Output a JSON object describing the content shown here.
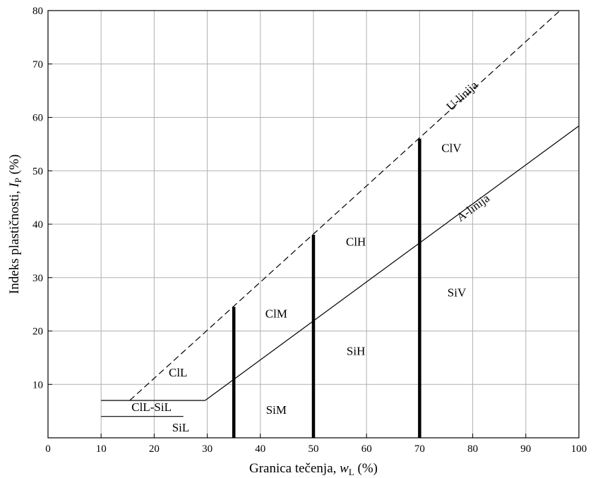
{
  "chart_data": {
    "type": "line",
    "xlabel": {
      "text": "Granica tečenja, ",
      "symbol": "w",
      "subscript": "L",
      "unit": " (%)"
    },
    "ylabel": {
      "text": "Indeks plastičnosti, ",
      "symbol": "I",
      "subscript": "P",
      "unit": " (%)"
    },
    "xlim": [
      0,
      100
    ],
    "ylim": [
      0,
      80
    ],
    "xticks": [
      0,
      10,
      20,
      30,
      40,
      50,
      60,
      70,
      80,
      90,
      100
    ],
    "yticks": [
      10,
      20,
      30,
      40,
      50,
      60,
      70,
      80
    ],
    "grid": true,
    "lines": [
      {
        "name": "U-linija",
        "style": "dashed",
        "points": [
          [
            15.4,
            7
          ],
          [
            100,
            83.2
          ]
        ]
      },
      {
        "name": "A-linija",
        "style": "solid",
        "points": [
          [
            29.6,
            7
          ],
          [
            100,
            58.4
          ]
        ]
      }
    ],
    "boundary_lines": [
      {
        "points": [
          [
            10,
            7
          ],
          [
            29.6,
            7
          ]
        ]
      },
      {
        "points": [
          [
            10,
            4
          ],
          [
            25.5,
            4
          ]
        ]
      }
    ],
    "divider_lines": [
      {
        "x": 35,
        "y_top": 24.5
      },
      {
        "x": 50,
        "y_top": 38
      },
      {
        "x": 70,
        "y_top": 56
      }
    ],
    "zones": [
      {
        "label": "ClL",
        "x": 24.5,
        "y": 11.5
      },
      {
        "label": "ClL-SiL",
        "x": 19.5,
        "y": 5.0
      },
      {
        "label": "SiL",
        "x": 25,
        "y": 1.2
      },
      {
        "label": "ClM",
        "x": 43,
        "y": 22.5
      },
      {
        "label": "SiM",
        "x": 43,
        "y": 4.5
      },
      {
        "label": "ClH",
        "x": 58,
        "y": 36
      },
      {
        "label": "SiH",
        "x": 58,
        "y": 15.5
      },
      {
        "label": "ClV",
        "x": 76,
        "y": 53.5
      },
      {
        "label": "SiV",
        "x": 77,
        "y": 26.5
      }
    ],
    "line_labels": [
      {
        "label": "U-linija",
        "x": 78.5,
        "y": 63.5,
        "angle_line": "U-linija"
      },
      {
        "label": "A-linija",
        "x": 80.5,
        "y": 42.5,
        "angle_line": "A-linija"
      }
    ]
  }
}
